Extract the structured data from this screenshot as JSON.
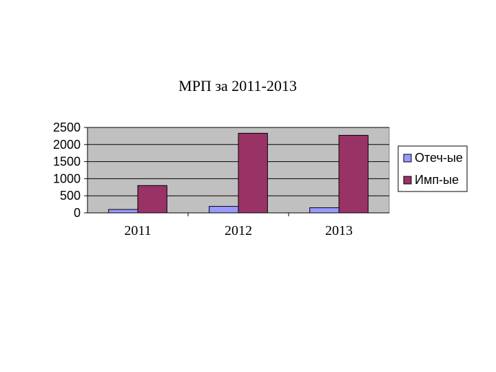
{
  "chart_data": {
    "type": "bar",
    "title": "МРП за 2011-2013",
    "categories": [
      "2011",
      "2012",
      "2013"
    ],
    "series": [
      {
        "name": "Отеч-ые",
        "values": [
          100,
          190,
          150
        ],
        "color": "#9999ff"
      },
      {
        "name": "Имп-ые",
        "values": [
          800,
          2330,
          2270
        ],
        "color": "#993366"
      }
    ],
    "ylim": [
      0,
      2500
    ],
    "yticks": [
      0,
      500,
      1000,
      1500,
      2000,
      2500
    ],
    "grid": true,
    "plot_background": "#c0c0c0",
    "legend_position": "right",
    "xlabel": "",
    "ylabel": ""
  }
}
